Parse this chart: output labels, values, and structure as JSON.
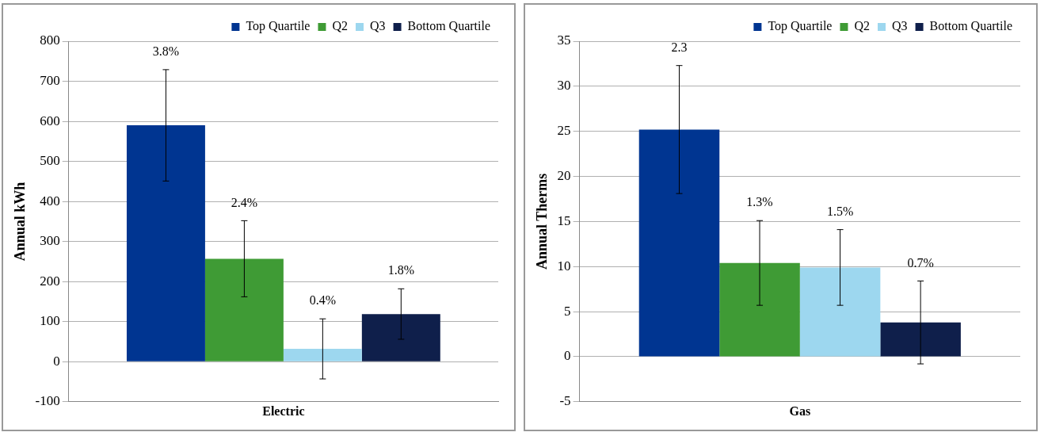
{
  "chart_data": [
    {
      "type": "bar",
      "categories": [
        "Electric"
      ],
      "ylabel": "Annual kWh",
      "ylim": [
        -100,
        800
      ],
      "yticks": [
        -100,
        0,
        100,
        200,
        300,
        400,
        500,
        600,
        700,
        800
      ],
      "grid": "y",
      "legend": "top right",
      "annotations": [
        "3.8%",
        "2.4%",
        "0.4%",
        "1.8%"
      ],
      "series": [
        {
          "name": "Top Quartile",
          "color": "#003591",
          "values": [
            590
          ],
          "errors": [
            139
          ]
        },
        {
          "name": "Q2",
          "color": "#3f9b35",
          "values": [
            257
          ],
          "errors": [
            95
          ]
        },
        {
          "name": "Q3",
          "color": "#9dd7ef",
          "values": [
            32
          ],
          "errors": [
            75
          ]
        },
        {
          "name": "Bottom Quartile",
          "color": "#0f1f4b",
          "values": [
            119
          ],
          "errors": [
            63
          ]
        }
      ]
    },
    {
      "type": "bar",
      "categories": [
        "Gas"
      ],
      "ylabel": "Annual Therms",
      "ylim": [
        -5,
        35
      ],
      "yticks": [
        -5,
        0,
        5,
        10,
        15,
        20,
        25,
        30,
        35
      ],
      "grid": "y",
      "legend": "top right",
      "annotations": [
        "2.3",
        "1.3%",
        "1.5%",
        "0.7%"
      ],
      "series": [
        {
          "name": "Top Quartile",
          "color": "#003591",
          "values": [
            25.2
          ],
          "errors": [
            7.1
          ]
        },
        {
          "name": "Q2",
          "color": "#3f9b35",
          "values": [
            10.4
          ],
          "errors": [
            4.7
          ]
        },
        {
          "name": "Q3",
          "color": "#9dd7ef",
          "values": [
            9.9
          ],
          "errors": [
            4.2
          ]
        },
        {
          "name": "Bottom Quartile",
          "color": "#0f1f4b",
          "values": [
            3.8
          ],
          "errors": [
            4.6
          ]
        }
      ]
    }
  ]
}
